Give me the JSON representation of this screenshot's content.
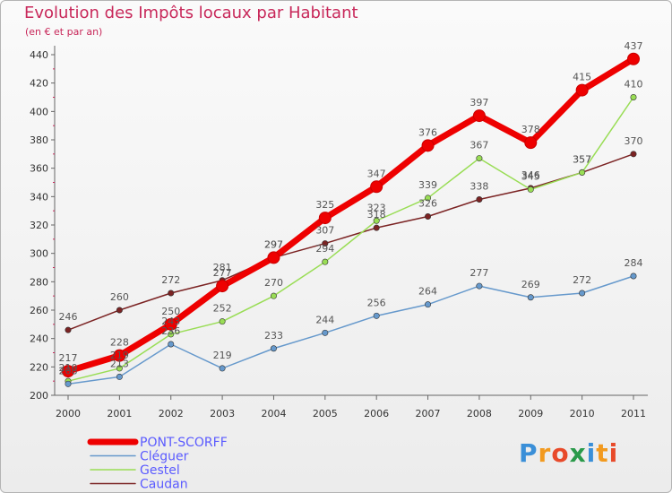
{
  "header": {
    "title": "Evolution des Impôts locaux par Habitant",
    "subtitle": "(en € et par an)"
  },
  "logo": {
    "letters": [
      "P",
      "r",
      "o",
      "x",
      "i",
      "t",
      "i"
    ],
    "colors": [
      "#3a8fd8",
      "#f29a1f",
      "#e84a2a",
      "#2a9a4a",
      "#3a8fd8",
      "#f29a1f",
      "#e84a2a"
    ]
  },
  "chart_data": {
    "type": "line",
    "title": "Evolution des Impôts locaux par Habitant",
    "subtitle": "(en € et par an)",
    "xlabel": "",
    "ylabel": "",
    "categories": [
      "2000",
      "2001",
      "2002",
      "2003",
      "2004",
      "2005",
      "2006",
      "2007",
      "2008",
      "2009",
      "2010",
      "2011"
    ],
    "ylim": [
      200,
      440
    ],
    "yticks": [
      200,
      220,
      240,
      260,
      280,
      300,
      320,
      340,
      360,
      380,
      400,
      420,
      440
    ],
    "grid": false,
    "legend_position": "bottom-left",
    "series": [
      {
        "name": "Caudan",
        "color": "#7b2323",
        "bold": false,
        "values": [
          246,
          260,
          272,
          281,
          297,
          307,
          318,
          326,
          338,
          346,
          357,
          370
        ],
        "labels": [
          "246",
          "260",
          "272",
          "281",
          "297",
          "307",
          "318",
          "326",
          "338",
          "346",
          "357",
          "370"
        ]
      },
      {
        "name": "Gestel",
        "color": "#99dd55",
        "bold": false,
        "values": [
          210,
          219,
          243,
          252,
          270,
          294,
          323,
          339,
          367,
          345,
          357,
          410
        ],
        "labels": [
          "210",
          "219",
          "243",
          "252",
          "270",
          "294",
          "323",
          "339",
          "367",
          "345",
          "357",
          "410"
        ]
      },
      {
        "name": "Cléguer",
        "color": "#6699cc",
        "bold": false,
        "values": [
          208,
          213,
          236,
          219,
          233,
          244,
          256,
          264,
          277,
          269,
          272,
          284
        ],
        "labels": [
          "208",
          "213",
          "236",
          "219",
          "233",
          "244",
          "256",
          "264",
          "277",
          "269",
          "272",
          "284"
        ]
      },
      {
        "name": "PONT-SCORFF",
        "color": "#ee0000",
        "bold": true,
        "values": [
          217,
          228,
          250,
          277,
          297,
          325,
          347,
          376,
          397,
          378,
          415,
          437
        ],
        "labels": [
          "217",
          "228",
          "250",
          "277",
          "297",
          "325",
          "347",
          "376",
          "397",
          "378",
          "415",
          "437"
        ]
      }
    ],
    "legend": [
      {
        "name": "PONT-SCORFF",
        "color": "#ee0000",
        "text_color": "#5b5bff",
        "bold": true
      },
      {
        "name": "Cléguer",
        "color": "#6699cc",
        "text_color": "#5b5bff",
        "bold": false
      },
      {
        "name": "Gestel",
        "color": "#99dd55",
        "text_color": "#5b5bff",
        "bold": false
      },
      {
        "name": "Caudan",
        "color": "#7b2323",
        "text_color": "#5b5bff",
        "bold": false
      }
    ]
  }
}
